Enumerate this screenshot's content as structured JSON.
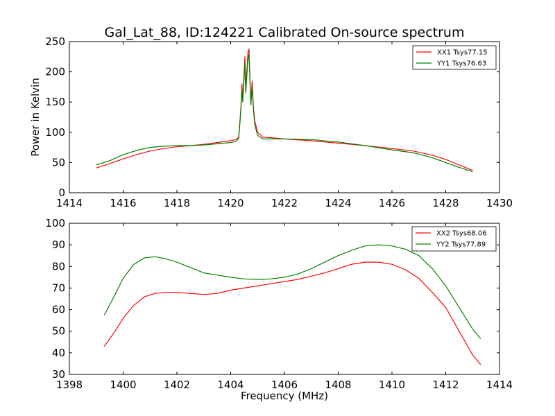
{
  "title": "Gal_Lat_88, ID:124221 Calibrated On-source spectrum",
  "chart_data": [
    {
      "type": "line",
      "ylabel": "Power in Kelvin",
      "xlabel": "",
      "xlim": [
        1414,
        1430
      ],
      "ylim": [
        0,
        250
      ],
      "xticks": [
        1414,
        1416,
        1418,
        1420,
        1422,
        1424,
        1426,
        1428,
        1430
      ],
      "yticks": [
        0,
        50,
        100,
        150,
        200,
        250
      ],
      "legend_position": "top-right",
      "series": [
        {
          "name": "XX1 Tsys77.15",
          "color": "#ff0000",
          "points": [
            [
              1415,
              41
            ],
            [
              1415.5,
              48
            ],
            [
              1416,
              56
            ],
            [
              1416.5,
              63
            ],
            [
              1417,
              69
            ],
            [
              1417.5,
              73
            ],
            [
              1418,
              76
            ],
            [
              1418.5,
              78
            ],
            [
              1419,
              80
            ],
            [
              1419.5,
              83
            ],
            [
              1420,
              86
            ],
            [
              1420.2,
              88
            ],
            [
              1420.3,
              92
            ],
            [
              1420.38,
              140
            ],
            [
              1420.42,
              180
            ],
            [
              1420.45,
              155
            ],
            [
              1420.5,
              200
            ],
            [
              1420.53,
              225
            ],
            [
              1420.56,
              175
            ],
            [
              1420.6,
              200
            ],
            [
              1420.64,
              230
            ],
            [
              1420.68,
              238
            ],
            [
              1420.72,
              185
            ],
            [
              1420.75,
              150
            ],
            [
              1420.8,
              185
            ],
            [
              1420.85,
              140
            ],
            [
              1420.9,
              118
            ],
            [
              1421,
              100
            ],
            [
              1421.2,
              92
            ],
            [
              1421.5,
              91
            ],
            [
              1422,
              89
            ],
            [
              1423,
              86
            ],
            [
              1424,
              82
            ],
            [
              1425,
              78
            ],
            [
              1426,
              73
            ],
            [
              1426.8,
              69
            ],
            [
              1427.5,
              62
            ],
            [
              1428,
              55
            ],
            [
              1428.5,
              46
            ],
            [
              1429,
              37
            ]
          ]
        },
        {
          "name": "YY1 Tsys76.63",
          "color": "#008000",
          "points": [
            [
              1415,
              46
            ],
            [
              1415.5,
              53
            ],
            [
              1416,
              63
            ],
            [
              1416.5,
              70
            ],
            [
              1417,
              75
            ],
            [
              1417.5,
              77
            ],
            [
              1418,
              78
            ],
            [
              1418.5,
              78
            ],
            [
              1419,
              79
            ],
            [
              1419.5,
              81
            ],
            [
              1420,
              83
            ],
            [
              1420.2,
              85
            ],
            [
              1420.3,
              90
            ],
            [
              1420.38,
              135
            ],
            [
              1420.42,
              170
            ],
            [
              1420.45,
              150
            ],
            [
              1420.5,
              190
            ],
            [
              1420.53,
              215
            ],
            [
              1420.56,
              165
            ],
            [
              1420.6,
              190
            ],
            [
              1420.64,
              220
            ],
            [
              1420.68,
              230
            ],
            [
              1420.72,
              180
            ],
            [
              1420.75,
              145
            ],
            [
              1420.8,
              175
            ],
            [
              1420.85,
              135
            ],
            [
              1420.9,
              112
            ],
            [
              1421,
              95
            ],
            [
              1421.2,
              89
            ],
            [
              1421.5,
              89
            ],
            [
              1422,
              89
            ],
            [
              1423,
              88
            ],
            [
              1424,
              84
            ],
            [
              1425,
              78
            ],
            [
              1426,
              71
            ],
            [
              1426.8,
              66
            ],
            [
              1427.5,
              58
            ],
            [
              1428,
              50
            ],
            [
              1428.5,
              42
            ],
            [
              1429,
              35
            ]
          ]
        }
      ]
    },
    {
      "type": "line",
      "ylabel": "",
      "xlabel": "Frequency (MHz)",
      "xlim": [
        1398,
        1414
      ],
      "ylim": [
        30,
        100
      ],
      "xticks": [
        1398,
        1400,
        1402,
        1404,
        1406,
        1408,
        1410,
        1412,
        1414
      ],
      "yticks": [
        30,
        40,
        50,
        60,
        70,
        80,
        90,
        100
      ],
      "legend_position": "top-right",
      "series": [
        {
          "name": "XX2 Tsys68.06",
          "color": "#ff0000",
          "points": [
            [
              1399.3,
              43
            ],
            [
              1399.7,
              50
            ],
            [
              1400,
              56
            ],
            [
              1400.4,
              62
            ],
            [
              1400.8,
              66
            ],
            [
              1401.2,
              67.5
            ],
            [
              1401.6,
              68
            ],
            [
              1402,
              68
            ],
            [
              1402.5,
              67.5
            ],
            [
              1403,
              67
            ],
            [
              1403.5,
              67.5
            ],
            [
              1404,
              69
            ],
            [
              1404.5,
              70
            ],
            [
              1405,
              71
            ],
            [
              1405.5,
              72
            ],
            [
              1406,
              73
            ],
            [
              1406.5,
              74
            ],
            [
              1407,
              75.5
            ],
            [
              1407.5,
              77
            ],
            [
              1408,
              79
            ],
            [
              1408.5,
              81
            ],
            [
              1409,
              82
            ],
            [
              1409.5,
              82
            ],
            [
              1410,
              81
            ],
            [
              1410.5,
              78.5
            ],
            [
              1411,
              74.5
            ],
            [
              1411.5,
              68
            ],
            [
              1412,
              61
            ],
            [
              1412.5,
              50
            ],
            [
              1413,
              39
            ],
            [
              1413.3,
              34.5
            ]
          ]
        },
        {
          "name": "YY2 Tsys77.89",
          "color": "#008000",
          "points": [
            [
              1399.3,
              57.5
            ],
            [
              1399.7,
              67
            ],
            [
              1400,
              74.5
            ],
            [
              1400.4,
              81
            ],
            [
              1400.8,
              84
            ],
            [
              1401.2,
              84.5
            ],
            [
              1401.6,
              83.5
            ],
            [
              1402,
              82
            ],
            [
              1402.5,
              79.5
            ],
            [
              1403,
              77
            ],
            [
              1403.5,
              76
            ],
            [
              1404,
              75
            ],
            [
              1404.5,
              74.2
            ],
            [
              1405,
              74
            ],
            [
              1405.5,
              74.2
            ],
            [
              1406,
              75
            ],
            [
              1406.5,
              76.5
            ],
            [
              1407,
              79
            ],
            [
              1407.5,
              82
            ],
            [
              1408,
              85
            ],
            [
              1408.5,
              87.5
            ],
            [
              1409,
              89.5
            ],
            [
              1409.5,
              90
            ],
            [
              1410,
              89.5
            ],
            [
              1410.5,
              88
            ],
            [
              1411,
              85
            ],
            [
              1411.5,
              79
            ],
            [
              1412,
              71
            ],
            [
              1412.5,
              61
            ],
            [
              1413,
              51
            ],
            [
              1413.3,
              46.5
            ]
          ]
        }
      ]
    }
  ]
}
